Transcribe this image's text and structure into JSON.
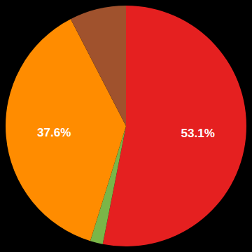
{
  "chart_data": {
    "type": "pie",
    "values": [
      53.1,
      1.7,
      37.6,
      7.6
    ],
    "value_labels": [
      "53.1%",
      null,
      "37.6%",
      null
    ],
    "colors": [
      "#e52020",
      "#7ab648",
      "#ff8c00",
      "#a0522d"
    ],
    "data_labels": true
  }
}
